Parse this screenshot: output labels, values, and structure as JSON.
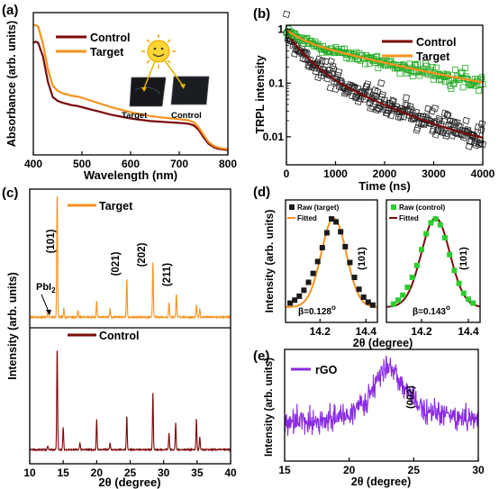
{
  "colors": {
    "control": "#7b0a0a",
    "target": "#f7921e",
    "target_raw": "#1a1a1a",
    "control_raw": "#2ecc2e",
    "trpl_target_marker": "#22aa22",
    "trpl_control_marker": "#222222",
    "rgo": "#8a2be2",
    "axis": "#000000"
  },
  "chart_data": [
    {
      "panel": "(a)",
      "type": "line",
      "xlabel": "Wavelength (nm)",
      "ylabel": "Absorbance (arb. units)",
      "xlim": [
        400,
        800
      ],
      "xticks": [
        400,
        500,
        600,
        700,
        800
      ],
      "legend": [
        "Control",
        "Target"
      ],
      "legend_position": "top-right",
      "inset_labels": [
        "Target",
        "Control"
      ],
      "series": [
        {
          "name": "Control",
          "x": [
            400,
            405,
            410,
            420,
            430,
            440,
            450,
            460,
            470,
            480,
            490,
            500,
            520,
            540,
            560,
            580,
            600,
            620,
            640,
            660,
            680,
            700,
            710,
            720,
            730,
            740,
            750,
            760,
            770,
            780,
            790,
            800
          ],
          "y": [
            0.86,
            0.87,
            0.86,
            0.75,
            0.55,
            0.43,
            0.4,
            0.385,
            0.375,
            0.365,
            0.36,
            0.35,
            0.33,
            0.31,
            0.29,
            0.275,
            0.26,
            0.25,
            0.24,
            0.235,
            0.23,
            0.225,
            0.222,
            0.218,
            0.205,
            0.17,
            0.11,
            0.06,
            0.035,
            0.02,
            0.015,
            0.01
          ]
        },
        {
          "name": "Target",
          "x": [
            400,
            405,
            410,
            420,
            430,
            440,
            450,
            460,
            470,
            480,
            490,
            500,
            520,
            540,
            560,
            580,
            600,
            620,
            640,
            660,
            680,
            700,
            710,
            720,
            730,
            740,
            750,
            760,
            770,
            780,
            790,
            800
          ],
          "y": [
            1.0,
            1.0,
            0.99,
            0.85,
            0.65,
            0.52,
            0.48,
            0.46,
            0.45,
            0.44,
            0.435,
            0.425,
            0.4,
            0.375,
            0.35,
            0.33,
            0.31,
            0.295,
            0.28,
            0.27,
            0.262,
            0.255,
            0.25,
            0.245,
            0.23,
            0.19,
            0.13,
            0.075,
            0.045,
            0.03,
            0.022,
            0.018
          ]
        }
      ]
    },
    {
      "panel": "(b)",
      "type": "scatter",
      "xlabel": "Time (ns)",
      "ylabel": "TRPL intensity",
      "xlim": [
        0,
        4000
      ],
      "xticks": [
        0,
        1000,
        2000,
        3000,
        4000
      ],
      "ylim": [
        0.003,
        1.2
      ],
      "yscale": "log",
      "yticks": [
        0.01,
        0.1,
        1
      ],
      "yticklabels": [
        "0.01",
        "0.1",
        "1"
      ],
      "legend": [
        "Control",
        "Target"
      ],
      "legend_position": "top-right",
      "series": [
        {
          "name": "Control",
          "fit_model": "biexponential",
          "a1": 0.6,
          "tau1_ns": 280,
          "a2": 0.25,
          "tau2_ns": 1000,
          "offset": 0.005
        },
        {
          "name": "Target",
          "fit_model": "biexponential",
          "a1": 0.35,
          "tau1_ns": 300,
          "a2": 0.6,
          "tau2_ns": 1900,
          "offset": 0.03
        }
      ]
    },
    {
      "panel": "(c)",
      "type": "line",
      "xlabel": "2θ (degree)",
      "ylabel": "Intensity (arb. units)",
      "xlim": [
        10,
        40
      ],
      "xticks": [
        10,
        15,
        20,
        25,
        30,
        35,
        40
      ],
      "peak_labels": [
        "(101)",
        "PbI2",
        "(021)",
        "(202)",
        "(211)"
      ],
      "series": [
        {
          "name": "Target",
          "peaks": [
            [
              12.7,
              0.05
            ],
            [
              14.1,
              1.0
            ],
            [
              15.1,
              0.07
            ],
            [
              17.2,
              0.05
            ],
            [
              20.0,
              0.13
            ],
            [
              22.0,
              0.07
            ],
            [
              24.5,
              0.31
            ],
            [
              28.4,
              0.44
            ],
            [
              30.8,
              0.12
            ],
            [
              31.9,
              0.19
            ],
            [
              34.9,
              0.1
            ],
            [
              35.4,
              0.07
            ]
          ]
        },
        {
          "name": "Control",
          "peaks": [
            [
              12.7,
              0.04
            ],
            [
              14.1,
              1.0
            ],
            [
              15.0,
              0.22
            ],
            [
              17.5,
              0.07
            ],
            [
              20.0,
              0.29
            ],
            [
              22.0,
              0.07
            ],
            [
              24.5,
              0.33
            ],
            [
              28.4,
              0.55
            ],
            [
              30.8,
              0.16
            ],
            [
              31.8,
              0.26
            ],
            [
              34.9,
              0.3
            ],
            [
              35.4,
              0.12
            ]
          ]
        }
      ]
    },
    {
      "panel": "(d)",
      "type": "scatter",
      "xlabel": "2θ (degree)",
      "ylabel": "Intensity (arb. units)",
      "xticks": [
        14.2,
        14.4
      ],
      "subplots": [
        {
          "legend": [
            "Raw (target)",
            "Fitted"
          ],
          "peak_label": "(101)",
          "fwhm_label": "β=0.128",
          "center": 14.26,
          "fwhm": 0.128,
          "xlim": [
            14.05,
            14.45
          ],
          "raw_x": [
            14.07,
            14.09,
            14.11,
            14.13,
            14.15,
            14.17,
            14.19,
            14.21,
            14.23,
            14.25,
            14.27,
            14.29,
            14.31,
            14.33,
            14.35,
            14.37,
            14.39,
            14.41,
            14.43
          ],
          "raw_y": [
            0.14,
            0.17,
            0.21,
            0.27,
            0.35,
            0.44,
            0.56,
            0.7,
            0.85,
            0.99,
            0.96,
            0.86,
            0.71,
            0.55,
            0.4,
            0.28,
            0.2,
            0.15,
            0.12
          ]
        },
        {
          "legend": [
            "Raw (control)",
            "Fitted"
          ],
          "peak_label": "(101)",
          "fwhm_label": "β=0.143",
          "center": 14.26,
          "fwhm": 0.143,
          "xlim": [
            14.05,
            14.45
          ],
          "raw_x": [
            14.08,
            14.1,
            14.12,
            14.14,
            14.16,
            14.18,
            14.2,
            14.22,
            14.24,
            14.26,
            14.28,
            14.3,
            14.32,
            14.34,
            14.36,
            14.38,
            14.4,
            14.42
          ],
          "raw_y": [
            0.13,
            0.17,
            0.22,
            0.3,
            0.4,
            0.52,
            0.68,
            0.84,
            0.95,
            0.99,
            0.93,
            0.8,
            0.63,
            0.47,
            0.34,
            0.24,
            0.18,
            0.14
          ]
        }
      ]
    },
    {
      "panel": "(e)",
      "type": "line",
      "xlabel": "2θ (degree)",
      "ylabel": "Intensity (arb. units)",
      "xlim": [
        15,
        30
      ],
      "xticks": [
        15,
        20,
        25,
        30
      ],
      "legend": [
        "rGO"
      ],
      "legend_position": "top-left",
      "peak_label": "(002)",
      "series": [
        {
          "name": "rGO",
          "profile": [
            [
              15,
              0.35
            ],
            [
              17,
              0.36
            ],
            [
              19,
              0.38
            ],
            [
              20,
              0.42
            ],
            [
              21,
              0.5
            ],
            [
              22,
              0.66
            ],
            [
              22.8,
              0.85
            ],
            [
              23.5,
              0.8
            ],
            [
              24.5,
              0.6
            ],
            [
              25.5,
              0.5
            ],
            [
              27,
              0.42
            ],
            [
              29,
              0.38
            ],
            [
              30,
              0.37
            ]
          ]
        }
      ]
    }
  ],
  "labels": {
    "panel_a": "(a)",
    "panel_b": "(b)",
    "panel_c": "(c)",
    "panel_d": "(d)",
    "panel_e": "(e)",
    "a_xlabel": "Wavelength (nm)",
    "a_ylabel": "Absorbance (arb. units)",
    "a_leg_control": "Control",
    "a_leg_target": "Target",
    "a_inset_target": "Target",
    "a_inset_control": "Control",
    "b_xlabel": "Time (ns)",
    "b_ylabel": "TRPL intensity",
    "b_leg_control": "Control",
    "b_leg_target": "Target",
    "c_xlabel_pre": "2",
    "c_xlabel_theta": "θ",
    "c_xlabel_post": " (degree)",
    "c_ylabel": "Intensity (arb. units)",
    "c_leg_target": "Target",
    "c_leg_control": "Control",
    "c_peak101": "(101)",
    "c_pbi2_pre": "PbI",
    "c_pbi2_sub": "2",
    "c_peak021": "(021)",
    "c_peak202": "(202)",
    "c_peak211": "(211)",
    "d_xlabel": "2θ (degree)",
    "d_ylabel": "Intensity (arb. units)",
    "d1_leg_raw": "Raw (target)",
    "d1_leg_fit": "Fitted",
    "d2_leg_raw": "Raw (control)",
    "d2_leg_fit": "Fitted",
    "d1_peak": "(101)",
    "d2_peak": "(101)",
    "d1_beta": "β=0.128",
    "d2_beta": "β=0.143",
    "beta_sup": "o",
    "e_xlabel": "2θ (degree)",
    "e_ylabel": "Intensity (arb. units)",
    "e_leg": "rGO",
    "e_peak": "(002)"
  }
}
